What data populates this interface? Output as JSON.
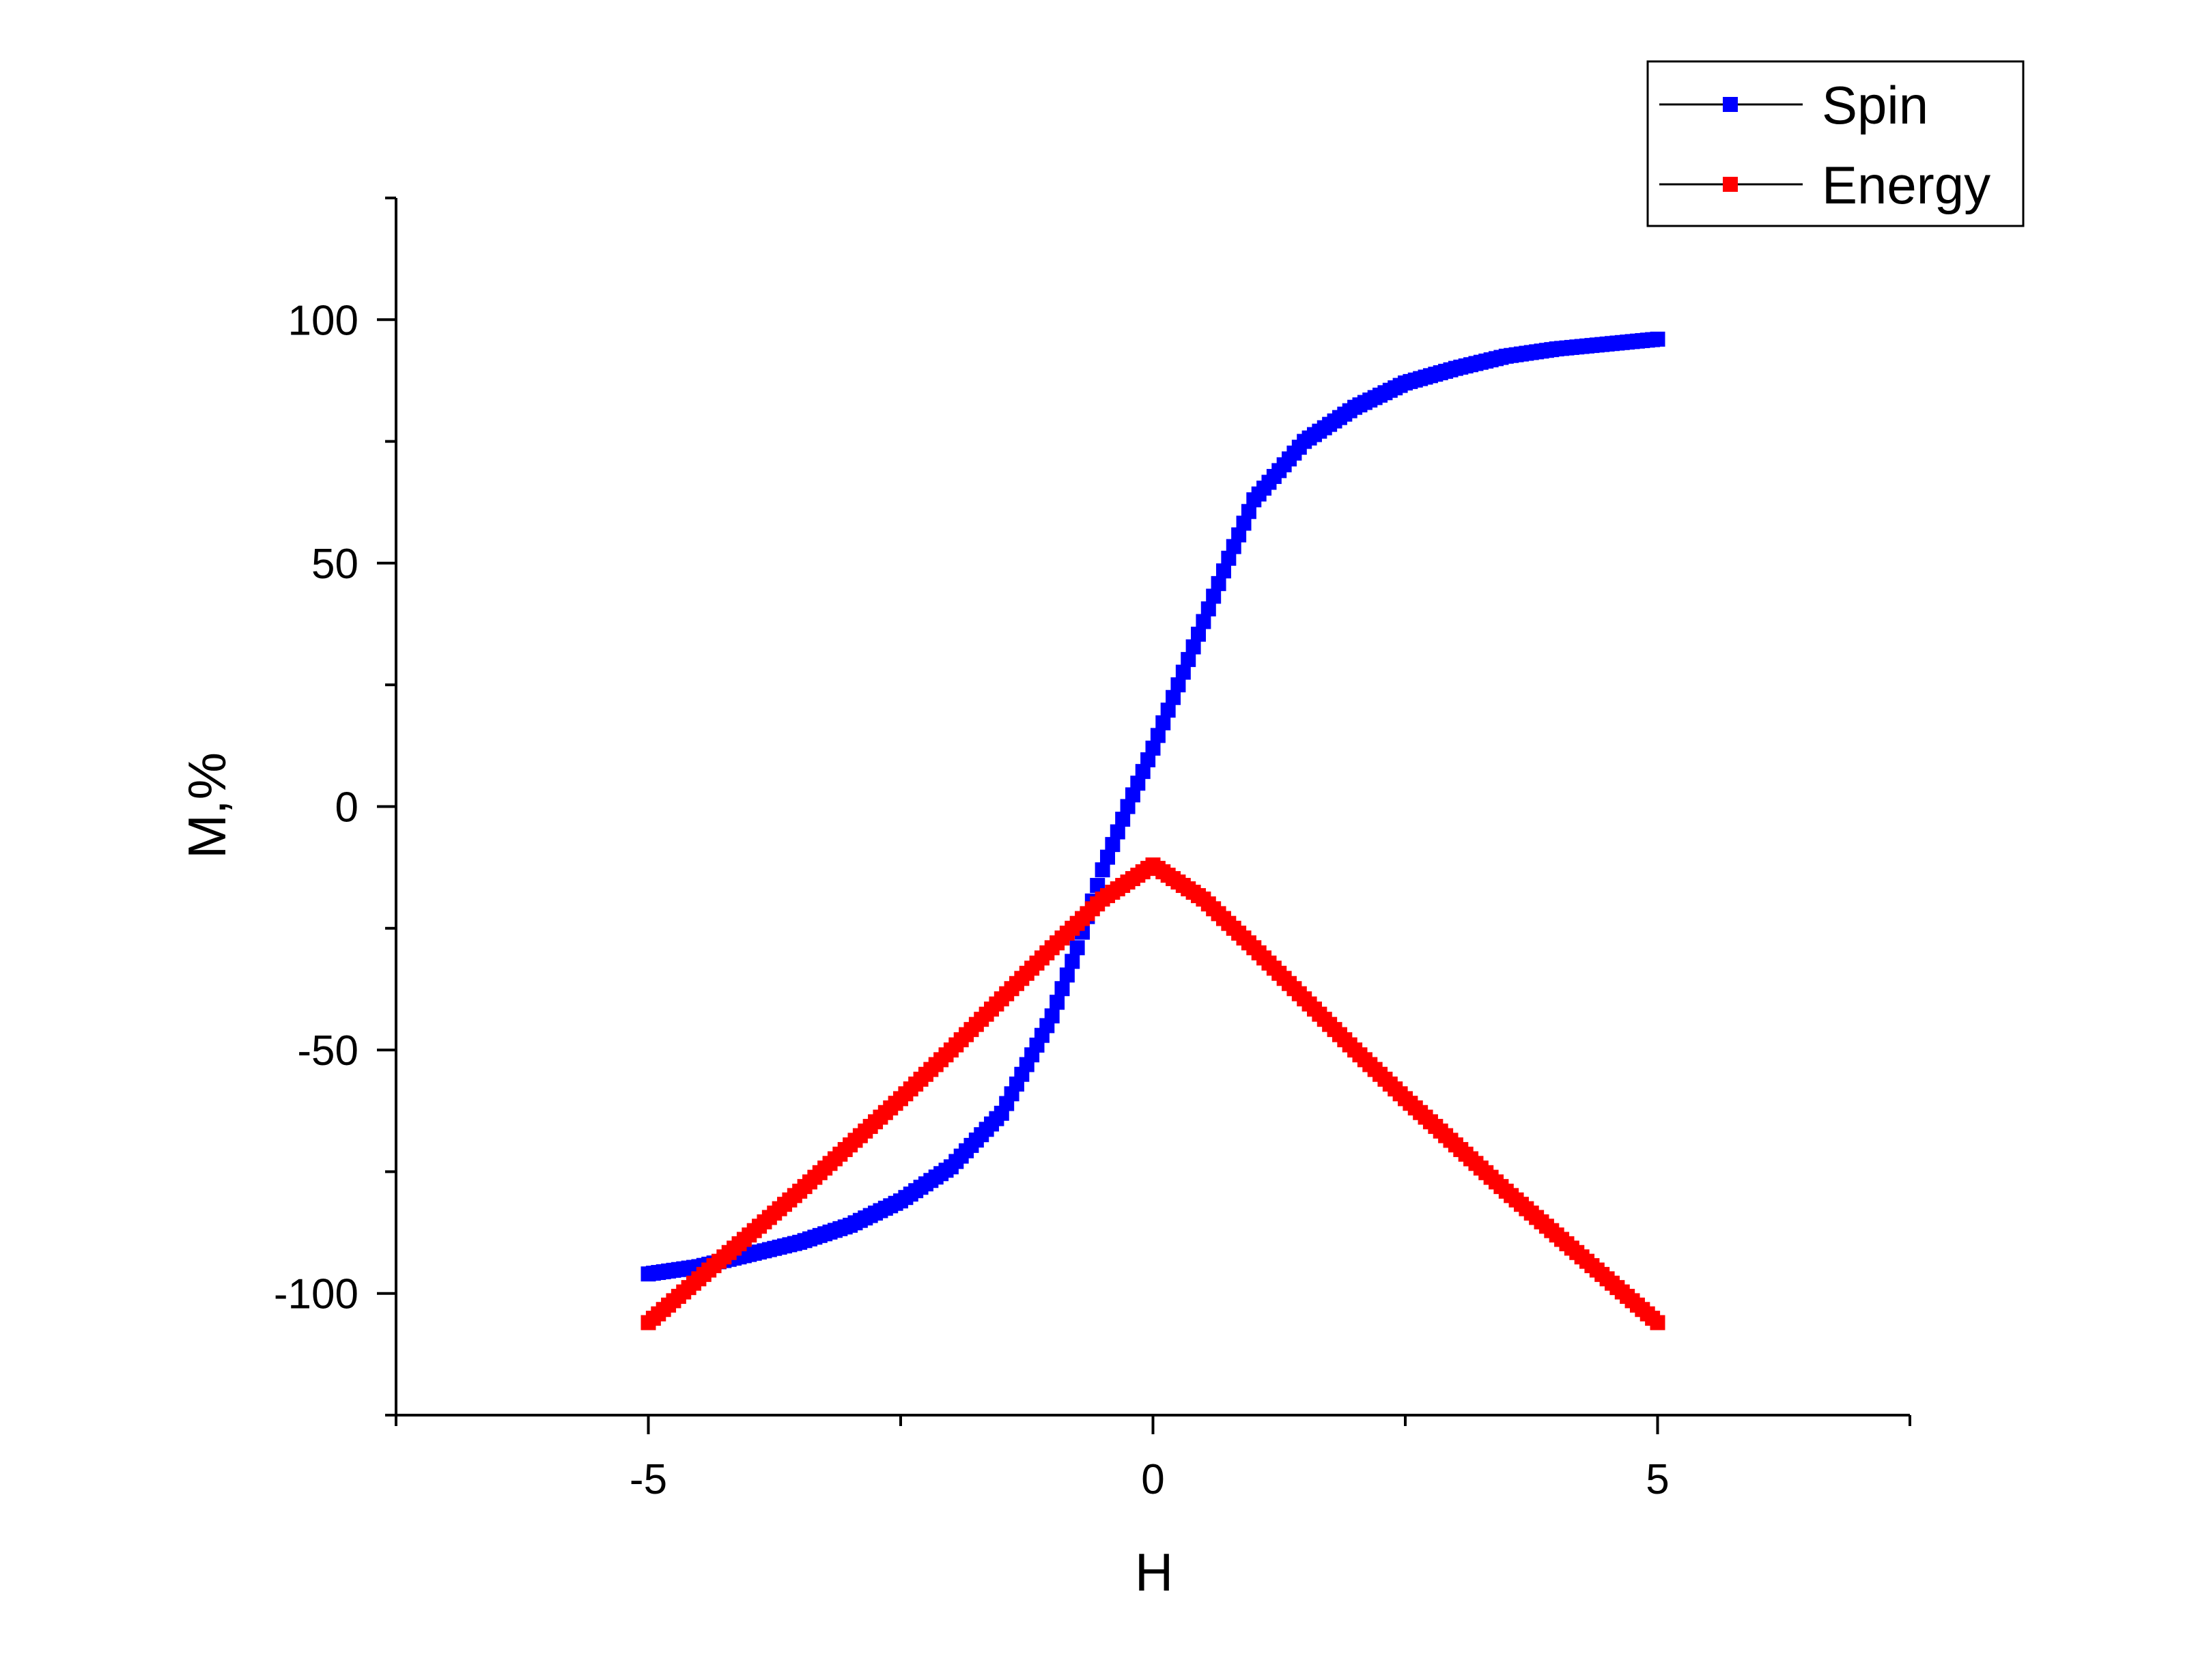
{
  "chart_data": {
    "type": "scatter",
    "title": "",
    "xlabel": "H",
    "ylabel": "M,%",
    "xlim": [
      -7.5,
      7.5
    ],
    "ylim": [
      -125,
      125
    ],
    "x_ticks": [
      -5,
      0,
      5
    ],
    "y_ticks": [
      -100,
      -50,
      0,
      50,
      100
    ],
    "x_tick_labels": [
      "-5",
      "0",
      "5"
    ],
    "y_tick_labels": [
      "-100",
      "-50",
      "0",
      "50",
      "100"
    ],
    "grid": false,
    "legend_position": "top-right",
    "series": [
      {
        "name": "Spin",
        "color": "#0000ff",
        "x": [
          -5.0,
          -4.5,
          -4.0,
          -3.5,
          -3.0,
          -2.5,
          -2.0,
          -1.5,
          -1.0,
          -0.75,
          -0.5,
          -0.25,
          0.0,
          0.25,
          0.5,
          0.75,
          1.0,
          1.5,
          2.0,
          2.5,
          3.0,
          3.5,
          4.0,
          4.5,
          5.0
        ],
        "y": [
          -96,
          -94.5,
          -92,
          -89.5,
          -86,
          -81,
          -74,
          -63,
          -43,
          -29,
          -13,
          0,
          12,
          25,
          38,
          51,
          63,
          75,
          82,
          87,
          90,
          92.5,
          94,
          95,
          96
        ]
      },
      {
        "name": "Energy",
        "color": "#ff0000",
        "x": [
          -5.0,
          -4.5,
          -4.0,
          -3.5,
          -3.0,
          -2.5,
          -2.0,
          -1.5,
          -1.0,
          -0.5,
          0.0,
          0.5,
          1.0,
          1.5,
          2.0,
          2.5,
          3.0,
          3.5,
          4.0,
          4.5,
          5.0
        ],
        "y": [
          -106,
          -97,
          -88,
          -79,
          -69.5,
          -60,
          -50,
          -39.5,
          -29,
          -19,
          -12,
          -19,
          -29,
          -39.5,
          -50,
          -60,
          -69.5,
          -79,
          -88,
          -97,
          -106
        ]
      }
    ]
  }
}
